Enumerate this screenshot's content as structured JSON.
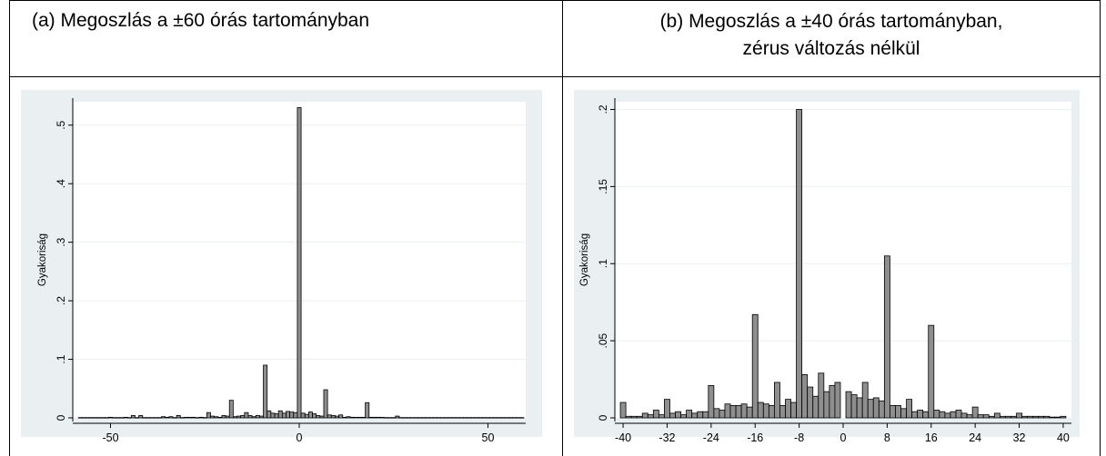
{
  "panels": {
    "a_title": "(a) Megoszlás a ±60 órás tartományban",
    "b_title_line1": "(b) Megoszlás a ±40 órás tartományban,",
    "b_title_line2": "zérus változás nélkül"
  },
  "colors": {
    "background": "#ffffff",
    "plot_background": "#ffffff",
    "outer_background": "#eaeff2",
    "bar_fill": "#8e8e8e",
    "bar_stroke": "#000000",
    "gridline": "#eaeff2"
  },
  "chart_data": [
    {
      "type": "bar",
      "id": "a",
      "title": "",
      "xlabel": "",
      "ylabel": "Gyakoriság",
      "xlim": [
        -60,
        60
      ],
      "ylim": [
        0,
        0.54
      ],
      "yticks": [
        0,
        0.1,
        0.2,
        0.3,
        0.4,
        0.5
      ],
      "ytick_labels": [
        "0",
        ".1",
        ".2",
        ".3",
        ".4",
        ".5"
      ],
      "xticks": [
        -50,
        0,
        50
      ],
      "xtick_labels": [
        "-50",
        "0",
        "50"
      ],
      "grid": true,
      "bin_width": 1,
      "x": [
        -58,
        -57,
        -56,
        -55,
        -54,
        -53,
        -52,
        -51,
        -50,
        -49,
        -48,
        -47,
        -46,
        -45,
        -44,
        -43,
        -42,
        -41,
        -40,
        -39,
        -38,
        -37,
        -36,
        -35,
        -34,
        -33,
        -32,
        -31,
        -30,
        -29,
        -28,
        -27,
        -26,
        -25,
        -24,
        -23,
        -22,
        -21,
        -20,
        -19,
        -18,
        -17,
        -16,
        -15,
        -14,
        -13,
        -12,
        -11,
        -10,
        -9,
        -8,
        -7,
        -6,
        -5,
        -4,
        -3,
        -2,
        -1,
        0,
        1,
        2,
        3,
        4,
        5,
        6,
        7,
        8,
        9,
        10,
        11,
        12,
        13,
        14,
        15,
        16,
        17,
        18,
        19,
        20,
        21,
        22,
        23,
        24,
        25,
        26,
        27,
        28,
        29,
        30,
        31,
        32,
        33,
        34,
        35,
        36,
        37,
        38,
        39,
        40,
        41,
        42,
        43,
        44,
        45,
        46,
        47,
        48,
        49,
        50,
        51,
        52,
        53,
        54,
        55,
        56,
        57,
        58,
        59
      ],
      "values": [
        0.0005,
        0.0005,
        0.0005,
        0.0005,
        0.0005,
        0.0005,
        0.0005,
        0.0005,
        0.001,
        0.0005,
        0.0005,
        0.0005,
        0.001,
        0.0005,
        0.004,
        0.0005,
        0.004,
        0.0005,
        0.0005,
        0.0005,
        0.0005,
        0.0005,
        0.002,
        0.001,
        0.002,
        0.0005,
        0.004,
        0.0005,
        0.001,
        0.001,
        0.001,
        0.0005,
        0.001,
        0.0005,
        0.009,
        0.003,
        0.002,
        0.001,
        0.004,
        0.003,
        0.03,
        0.002,
        0.003,
        0.004,
        0.009,
        0.004,
        0.002,
        0.004,
        0.003,
        0.09,
        0.012,
        0.008,
        0.007,
        0.012,
        0.008,
        0.011,
        0.01,
        0.009,
        0.53,
        0.008,
        0.006,
        0.01,
        0.007,
        0.004,
        0.003,
        0.048,
        0.005,
        0.004,
        0.003,
        0.005,
        0.001,
        0.002,
        0.001,
        0.001,
        0.001,
        0.001,
        0.026,
        0.001,
        0.001,
        0.001,
        0.001,
        0.0005,
        0.0005,
        0.0005,
        0.003,
        0.0005,
        0.0005,
        0.0005,
        0.0005,
        0.0005,
        0.0005,
        0.0005,
        0.0005,
        0.0005,
        0.0005,
        0.0005,
        0.0005,
        0.0005,
        0.0005,
        0.0005,
        0.0005,
        0.0005,
        0.0005,
        0.0005,
        0.0005,
        0.0005,
        0.0005,
        0.0005,
        0.0005,
        0.0005,
        0.0005,
        0.0005,
        0.0005,
        0.0005,
        0.0005,
        0.0005,
        0.0005,
        0.0005
      ]
    },
    {
      "type": "bar",
      "id": "b",
      "title": "",
      "xlabel": "",
      "ylabel": "Gyakoriság",
      "xlim": [
        -41.5,
        41.5
      ],
      "ylim": [
        0,
        0.205
      ],
      "yticks": [
        0,
        0.05,
        0.1,
        0.15,
        0.2
      ],
      "ytick_labels": [
        "0",
        ".05",
        ".1",
        ".15",
        ".2"
      ],
      "xticks": [
        -40,
        -32,
        -24,
        -16,
        -8,
        0,
        8,
        16,
        24,
        32,
        40
      ],
      "xtick_labels": [
        "-40",
        "-32",
        "-24",
        "-16",
        "-8",
        "0",
        "8",
        "16",
        "24",
        "32",
        "40"
      ],
      "grid": true,
      "bin_width": 1,
      "x": [
        -40,
        -39,
        -38,
        -37,
        -36,
        -35,
        -34,
        -33,
        -32,
        -31,
        -30,
        -29,
        -28,
        -27,
        -26,
        -25,
        -24,
        -23,
        -22,
        -21,
        -20,
        -19,
        -18,
        -17,
        -16,
        -15,
        -14,
        -13,
        -12,
        -11,
        -10,
        -9,
        -8,
        -7,
        -6,
        -5,
        -4,
        -3,
        -2,
        -1,
        1,
        2,
        3,
        4,
        5,
        6,
        7,
        8,
        9,
        10,
        11,
        12,
        13,
        14,
        15,
        16,
        17,
        18,
        19,
        20,
        21,
        22,
        23,
        24,
        25,
        26,
        27,
        28,
        29,
        30,
        31,
        32,
        33,
        34,
        35,
        36,
        37,
        38,
        39,
        40
      ],
      "values": [
        0.01,
        0.001,
        0.001,
        0.001,
        0.003,
        0.002,
        0.005,
        0.002,
        0.012,
        0.003,
        0.004,
        0.002,
        0.005,
        0.003,
        0.004,
        0.004,
        0.021,
        0.006,
        0.005,
        0.009,
        0.008,
        0.008,
        0.009,
        0.007,
        0.067,
        0.01,
        0.009,
        0.008,
        0.023,
        0.008,
        0.012,
        0.01,
        0.2,
        0.028,
        0.02,
        0.014,
        0.029,
        0.017,
        0.021,
        0.023,
        0.017,
        0.015,
        0.013,
        0.023,
        0.012,
        0.013,
        0.011,
        0.105,
        0.008,
        0.008,
        0.006,
        0.012,
        0.004,
        0.005,
        0.004,
        0.06,
        0.005,
        0.004,
        0.003,
        0.004,
        0.005,
        0.003,
        0.002,
        0.007,
        0.002,
        0.002,
        0.001,
        0.003,
        0.001,
        0.001,
        0.001,
        0.003,
        0.001,
        0.001,
        0.001,
        0.001,
        0.001,
        0.0005,
        0.0005,
        0.001
      ]
    }
  ]
}
